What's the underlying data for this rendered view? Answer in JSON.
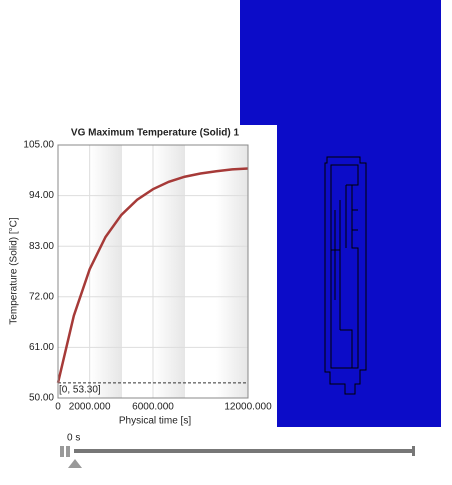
{
  "chart_data": {
    "type": "line",
    "title": "VG Maximum Temperature (Solid) 1",
    "x_label": "Physical time [s]",
    "y_label": "Temperature (Solid) [°C]",
    "x": [
      0,
      1000,
      2000,
      3000,
      4000,
      5000,
      6000,
      7000,
      8000,
      9000,
      10000,
      11000,
      12000
    ],
    "values": [
      53.3,
      67.9,
      78.0,
      85.0,
      89.8,
      93.1,
      95.4,
      97.0,
      98.1,
      98.8,
      99.3,
      99.7,
      99.9
    ],
    "color": "#a63a38",
    "xlim": [
      0,
      12000
    ],
    "xticks": [
      0,
      {
        "value": 2000,
        "label": "2000.000"
      },
      {
        "value": 6000,
        "label": "6000.000"
      },
      {
        "value": 12000,
        "label": "12000.000"
      }
    ],
    "ylim": [
      50,
      105
    ],
    "yticks": [
      {
        "value": 50,
        "label": "50.00"
      },
      {
        "value": 61,
        "label": "61.00"
      },
      {
        "value": 72,
        "label": "72.00"
      },
      {
        "value": 83,
        "label": "83.00"
      },
      {
        "value": 94,
        "label": "94.00"
      },
      {
        "value": 105,
        "label": "105.00"
      }
    ],
    "grid": true,
    "reference_line": {
      "value": 53.3,
      "label": "[0, 53.30]"
    }
  },
  "player": {
    "time_label": "0 s"
  }
}
